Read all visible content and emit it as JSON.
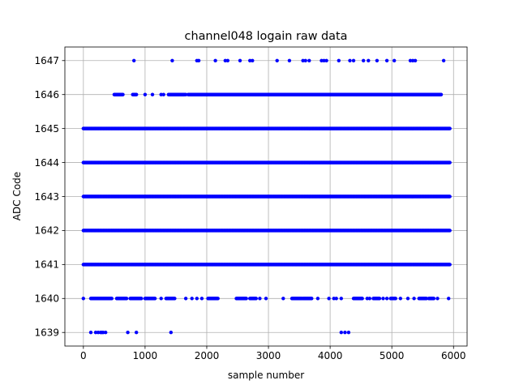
{
  "chart_data": {
    "type": "scatter",
    "title": "channel048 logain raw data",
    "xlabel": "sample number",
    "ylabel": "ADC Code",
    "xlim": [
      -300,
      6220
    ],
    "ylim": [
      1638.6,
      1647.4
    ],
    "xticks": [
      0,
      1000,
      2000,
      3000,
      4000,
      5000,
      6000
    ],
    "yticks": [
      1639,
      1640,
      1641,
      1642,
      1643,
      1644,
      1645,
      1646,
      1647
    ],
    "grid": true,
    "marker_color": "#0000ff",
    "series": [
      {
        "rows": [
          {
            "y": 1647,
            "x": [
              820,
              1440,
              1840,
              1870,
              2140,
              2300,
              2340,
              2540,
              2700,
              2740,
              3140,
              3340,
              3560,
              3600,
              3660,
              3860,
              3900,
              3940,
              4140,
              4320,
              4380,
              4540,
              4620,
              4760,
              4920,
              5040,
              5300,
              5340,
              5380,
              5840
            ]
          },
          {
            "y": 1646,
            "dense_ranges": [
              [
                500,
                640
              ],
              [
                800,
                860
              ],
              [
                1380,
                1640
              ],
              [
                1700,
                5800
              ]
            ],
            "sparse_x": [
              1000,
              1120,
              1260,
              1300,
              1660
            ]
          },
          {
            "y": 1645,
            "dense_ranges": [
              [
                0,
                5940
              ]
            ]
          },
          {
            "y": 1644,
            "dense_ranges": [
              [
                0,
                5940
              ]
            ]
          },
          {
            "y": 1643,
            "dense_ranges": [
              [
                0,
                5940
              ]
            ]
          },
          {
            "y": 1642,
            "dense_ranges": [
              [
                0,
                5940
              ]
            ]
          },
          {
            "y": 1641,
            "dense_ranges": [
              [
                0,
                5940
              ]
            ]
          },
          {
            "y": 1640,
            "dense_ranges": [
              [
                120,
                460
              ],
              [
                540,
                700
              ],
              [
                760,
                940
              ],
              [
                1000,
                1160
              ],
              [
                1340,
                1480
              ],
              [
                2020,
                2180
              ],
              [
                2480,
                2640
              ],
              [
                2700,
                2800
              ],
              [
                3380,
                3540
              ],
              [
                3560,
                3700
              ],
              [
                4380,
                4520
              ],
              [
                4700,
                4800
              ],
              [
                4980,
                5060
              ],
              [
                5440,
                5560
              ],
              [
                5600,
                5680
              ]
            ],
            "sparse_x": [
              0,
              1260,
              1660,
              1760,
              1840,
              1920,
              2860,
              2960,
              3240,
              3800,
              3980,
              4060,
              4100,
              4180,
              4600,
              4640,
              4860,
              4920,
              5140,
              5260,
              5360,
              5740,
              5920
            ]
          },
          {
            "y": 1639,
            "x": [
              120,
              200,
              240,
              280,
              300,
              320,
              360,
              720,
              860,
              1420,
              4180,
              4240,
              4300
            ]
          }
        ]
      }
    ]
  }
}
